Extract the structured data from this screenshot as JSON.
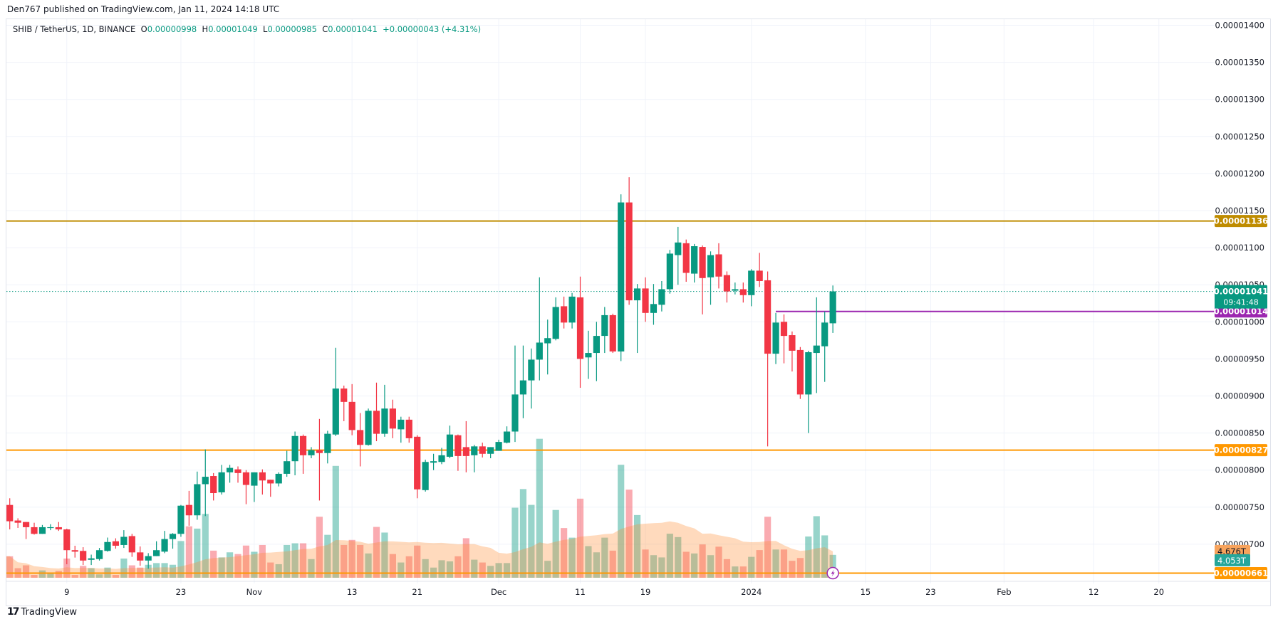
{
  "header": {
    "published": "Den767 published on TradingView.com, Jan 11, 2024 14:18 UTC"
  },
  "legend": {
    "symbol": "SHIB / TetherUS, 1D, BINANCE",
    "open_label": "O",
    "open": "0.00000998",
    "high_label": "H",
    "high": "0.00001049",
    "low_label": "L",
    "low": "0.00000985",
    "close_label": "C",
    "close": "0.00001041",
    "change": "+0.00000043 (+4.31%)"
  },
  "footer": {
    "brand": "TradingView",
    "logo_icon": "tradingview-logo-icon"
  },
  "colors": {
    "up": "#089981",
    "down": "#f23645",
    "resistance": "#bf8c00",
    "support": "#ff9800",
    "purple": "#9c27b0",
    "volume_ma": "#ff9800"
  },
  "chart_data": {
    "type": "candlestick",
    "symbol": "SHIB / TetherUS",
    "interval": "1D",
    "ylim": [
      6.61e-06,
      1.4e-05
    ],
    "y_ticks": [
      "0.00001400",
      "0.00001350",
      "0.00001300",
      "0.00001250",
      "0.00001200",
      "0.00001150",
      "0.00001100",
      "0.00001050",
      "0.00001000",
      "0.00000950",
      "0.00000900",
      "0.00000850",
      "0.00000800",
      "0.00000750",
      "0.00000700"
    ],
    "x_ticks": [
      {
        "label": "9",
        "date": "2023-10-09"
      },
      {
        "label": "23",
        "date": "2023-10-23"
      },
      {
        "label": "Nov",
        "date": "2023-11-01"
      },
      {
        "label": "13",
        "date": "2023-11-13"
      },
      {
        "label": "21",
        "date": "2023-11-21"
      },
      {
        "label": "Dec",
        "date": "2023-12-01"
      },
      {
        "label": "11",
        "date": "2023-12-11"
      },
      {
        "label": "19",
        "date": "2023-12-19"
      },
      {
        "label": "2024",
        "date": "2024-01-01"
      },
      {
        "label": "15",
        "date": "2024-01-15"
      },
      {
        "label": "23",
        "date": "2024-01-23"
      },
      {
        "label": "Feb",
        "date": "2024-02-01"
      },
      {
        "label": "12",
        "date": "2024-02-12"
      },
      {
        "label": "20",
        "date": "2024-02-20"
      }
    ],
    "grid": true,
    "volume_unit": "T",
    "columns": [
      "date",
      "open",
      "high",
      "low",
      "close",
      "volume"
    ],
    "candles": [
      [
        "2023-10-02",
        7.53e-06,
        7.62e-06,
        7.2e-06,
        7.31e-06,
        3.8
      ],
      [
        "2023-10-03",
        7.32e-06,
        7.35e-06,
        7.22e-06,
        7.29e-06,
        1.7
      ],
      [
        "2023-10-04",
        7.3e-06,
        7.3e-06,
        7.07e-06,
        7.23e-06,
        2.2
      ],
      [
        "2023-10-05",
        7.23e-06,
        7.29e-06,
        7.13e-06,
        7.14e-06,
        0.5
      ],
      [
        "2023-10-06",
        7.14e-06,
        7.26e-06,
        7.14e-06,
        7.23e-06,
        1.3
      ],
      [
        "2023-10-07",
        7.23e-06,
        7.27e-06,
        7.19e-06,
        7.23e-06,
        0.8
      ],
      [
        "2023-10-08",
        7.23e-06,
        7.3e-06,
        7.18e-06,
        7.2e-06,
        1.2
      ],
      [
        "2023-10-09",
        7.2e-06,
        7.21e-06,
        6.73e-06,
        6.92e-06,
        3.4
      ],
      [
        "2023-10-10",
        6.92e-06,
        6.98e-06,
        6.82e-06,
        6.9e-06,
        0.5
      ],
      [
        "2023-10-11",
        6.91e-06,
        6.96e-06,
        6.72e-06,
        6.78e-06,
        2.1
      ],
      [
        "2023-10-12",
        6.79e-06,
        6.86e-06,
        6.72e-06,
        6.81e-06,
        1.7
      ],
      [
        "2023-10-13",
        6.8e-06,
        6.95e-06,
        6.78e-06,
        6.92e-06,
        0.6
      ],
      [
        "2023-10-14",
        6.91e-06,
        7.09e-06,
        6.9e-06,
        7.03e-06,
        1.8
      ],
      [
        "2023-10-15",
        7.04e-06,
        7.08e-06,
        6.94e-06,
        6.98e-06,
        0.5
      ],
      [
        "2023-10-16",
        6.99e-06,
        7.19e-06,
        6.95e-06,
        7.1e-06,
        3.4
      ],
      [
        "2023-10-17",
        7.11e-06,
        7.14e-06,
        6.83e-06,
        6.89e-06,
        2.2
      ],
      [
        "2023-10-18",
        6.89e-06,
        6.97e-06,
        6.71e-06,
        6.78e-06,
        1.8
      ],
      [
        "2023-10-19",
        6.78e-06,
        6.88e-06,
        6.67e-06,
        6.84e-06,
        2.3
      ],
      [
        "2023-10-20",
        6.84e-06,
        7.04e-06,
        6.84e-06,
        6.92e-06,
        2.6
      ],
      [
        "2023-10-21",
        6.9e-06,
        7.18e-06,
        6.88e-06,
        7.07e-06,
        2.6
      ],
      [
        "2023-10-22",
        7.07e-06,
        7.15e-06,
        6.94e-06,
        7.14e-06,
        2.3
      ],
      [
        "2023-10-23",
        7.14e-06,
        7.53e-06,
        7.1e-06,
        7.52e-06,
        6.5
      ],
      [
        "2023-10-24",
        7.53e-06,
        7.72e-06,
        7.25e-06,
        7.39e-06,
        9.1
      ],
      [
        "2023-10-25",
        7.39e-06,
        7.98e-06,
        7.33e-06,
        7.81e-06,
        8.7
      ],
      [
        "2023-10-26",
        7.81e-06,
        8.28e-06,
        7.38e-06,
        7.91e-06,
        11.3
      ],
      [
        "2023-10-27",
        7.92e-06,
        7.96e-06,
        7.59e-06,
        7.69e-06,
        4.8
      ],
      [
        "2023-10-28",
        7.7e-06,
        8.07e-06,
        7.67e-06,
        7.97e-06,
        3.6
      ],
      [
        "2023-10-29",
        7.97e-06,
        8.07e-06,
        7.83e-06,
        8.03e-06,
        4.5
      ],
      [
        "2023-10-30",
        8.01e-06,
        8.05e-06,
        7.83e-06,
        7.96e-06,
        4.2
      ],
      [
        "2023-10-31",
        7.97e-06,
        8e-06,
        7.54e-06,
        7.8e-06,
        5.7
      ],
      [
        "2023-11-01",
        7.79e-06,
        7.97e-06,
        7.57e-06,
        7.97e-06,
        4.6
      ],
      [
        "2023-11-02",
        7.97e-06,
        8.01e-06,
        7.67e-06,
        7.86e-06,
        5.8
      ],
      [
        "2023-11-03",
        7.87e-06,
        7.87e-06,
        7.64e-06,
        7.82e-06,
        2.7
      ],
      [
        "2023-11-04",
        7.82e-06,
        7.97e-06,
        7.78e-06,
        7.95e-06,
        2.4
      ],
      [
        "2023-11-05",
        7.95e-06,
        8.26e-06,
        7.91e-06,
        8.12e-06,
        5.8
      ],
      [
        "2023-11-06",
        8.12e-06,
        8.52e-06,
        7.93e-06,
        8.46e-06,
        6.1
      ],
      [
        "2023-11-07",
        8.46e-06,
        8.48e-06,
        7.95e-06,
        8.2e-06,
        6.1
      ],
      [
        "2023-11-08",
        8.2e-06,
        8.31e-06,
        8.16e-06,
        8.27e-06,
        3.3
      ],
      [
        "2023-11-09",
        8.27e-06,
        8.69e-06,
        7.59e-06,
        8.23e-06,
        10.8
      ],
      [
        "2023-11-10",
        8.23e-06,
        8.53e-06,
        8.09e-06,
        8.49e-06,
        7.6
      ],
      [
        "2023-11-11",
        8.48e-06,
        9.65e-06,
        8.46e-06,
        9.1e-06,
        19.8
      ],
      [
        "2023-11-12",
        9.1e-06,
        9.14e-06,
        8.66e-06,
        8.92e-06,
        5.8
      ],
      [
        "2023-11-13",
        8.92e-06,
        9.16e-06,
        8.47e-06,
        8.54e-06,
        6.7
      ],
      [
        "2023-11-14",
        8.54e-06,
        8.77e-06,
        8.05e-06,
        8.34e-06,
        5.8
      ],
      [
        "2023-11-15",
        8.34e-06,
        8.83e-06,
        8.33e-06,
        8.8e-06,
        4.3
      ],
      [
        "2023-11-16",
        8.8e-06,
        9.18e-06,
        8.39e-06,
        8.49e-06,
        9.0
      ],
      [
        "2023-11-17",
        8.49e-06,
        9.15e-06,
        8.45e-06,
        8.83e-06,
        8.0
      ],
      [
        "2023-11-18",
        8.83e-06,
        8.95e-06,
        8.43e-06,
        8.56e-06,
        4.2
      ],
      [
        "2023-11-19",
        8.55e-06,
        8.72e-06,
        8.37e-06,
        8.68e-06,
        2.7
      ],
      [
        "2023-11-20",
        8.68e-06,
        8.72e-06,
        8.37e-06,
        8.43e-06,
        3.8
      ],
      [
        "2023-11-21",
        8.45e-06,
        8.47e-06,
        7.62e-06,
        7.74e-06,
        5.7
      ],
      [
        "2023-11-22",
        7.73e-06,
        8.14e-06,
        7.71e-06,
        8.11e-06,
        3.3
      ],
      [
        "2023-11-23",
        8.1e-06,
        8.22e-06,
        8e-06,
        8.12e-06,
        1.8
      ],
      [
        "2023-11-24",
        8.11e-06,
        8.3e-06,
        8.08e-06,
        8.2e-06,
        3.1
      ],
      [
        "2023-11-25",
        8.18e-06,
        8.6e-06,
        8.16e-06,
        8.48e-06,
        2.9
      ],
      [
        "2023-11-26",
        8.47e-06,
        8.48e-06,
        7.99e-06,
        8.19e-06,
        3.8
      ],
      [
        "2023-11-27",
        8.31e-06,
        8.66e-06,
        7.97e-06,
        8.19e-06,
        7.0
      ],
      [
        "2023-11-28",
        8.2e-06,
        8.34e-06,
        7.97e-06,
        8.32e-06,
        3.2
      ],
      [
        "2023-11-29",
        8.32e-06,
        8.37e-06,
        8.17e-06,
        8.22e-06,
        2.7
      ],
      [
        "2023-11-30",
        8.22e-06,
        8.31e-06,
        8.16e-06,
        8.31e-06,
        2.1
      ],
      [
        "2023-12-01",
        8.26e-06,
        8.41e-06,
        8.26e-06,
        8.38e-06,
        2.6
      ],
      [
        "2023-12-02",
        8.37e-06,
        8.59e-06,
        8.36e-06,
        8.52e-06,
        2.6
      ],
      [
        "2023-12-03",
        8.52e-06,
        9.68e-06,
        8.38e-06,
        9.02e-06,
        12.4
      ],
      [
        "2023-12-04",
        9.02e-06,
        9.68e-06,
        8.7e-06,
        9.21e-06,
        15.7
      ],
      [
        "2023-12-05",
        9.21e-06,
        9.64e-06,
        8.83e-06,
        9.49e-06,
        12.9
      ],
      [
        "2023-12-06",
        9.49e-06,
        1.06e-05,
        9.21e-06,
        9.72e-06,
        24.6
      ],
      [
        "2023-12-07",
        9.71e-06,
        1.003e-05,
        9.29e-06,
        9.78e-06,
        3.0
      ],
      [
        "2023-12-08",
        9.77e-06,
        1.033e-05,
        9.75e-06,
        1.02e-05,
        12.0
      ],
      [
        "2023-12-09",
        1.021e-05,
        1.034e-05,
        9.91e-06,
        9.99e-06,
        8.8
      ],
      [
        "2023-12-10",
        9.99e-06,
        1.039e-05,
        9.91e-06,
        1.034e-05,
        7.1
      ],
      [
        "2023-12-11",
        1.033e-05,
        1.061e-05,
        9.11e-06,
        9.5e-06,
        14.0
      ],
      [
        "2023-12-12",
        9.52e-06,
        9.88e-06,
        9.23e-06,
        9.58e-06,
        5.6
      ],
      [
        "2023-12-13",
        9.58e-06,
        1e-05,
        9.2e-06,
        9.81e-06,
        4.5
      ],
      [
        "2023-12-14",
        9.81e-06,
        1.02e-05,
        9.58e-06,
        1.009e-05,
        7.1
      ],
      [
        "2023-12-15",
        1.009e-05,
        1.011e-05,
        9.58e-06,
        9.6e-06,
        4.8
      ],
      [
        "2023-12-16",
        9.6e-06,
        1.172e-05,
        9.47e-06,
        1.161e-05,
        20.0
      ],
      [
        "2023-12-17",
        1.161e-05,
        1.195e-05,
        1.023e-05,
        1.029e-05,
        15.6
      ],
      [
        "2023-12-18",
        1.029e-05,
        1.051e-05,
        9.58e-06,
        1.045e-05,
        11.1
      ],
      [
        "2023-12-19",
        1.045e-05,
        1.06e-05,
        1e-05,
        1.012e-05,
        5.0
      ],
      [
        "2023-12-20",
        1.012e-05,
        1.051e-05,
        9.96e-06,
        1.024e-05,
        4.0
      ],
      [
        "2023-12-21",
        1.023e-05,
        1.055e-05,
        1.014e-05,
        1.044e-05,
        3.6
      ],
      [
        "2023-12-22",
        1.044e-05,
        1.097e-05,
        1.038e-05,
        1.092e-05,
        7.8
      ],
      [
        "2023-12-23",
        1.09e-05,
        1.128e-05,
        1.05e-05,
        1.107e-05,
        7.2
      ],
      [
        "2023-12-24",
        1.106e-05,
        1.111e-05,
        1.054e-05,
        1.066e-05,
        4.6
      ],
      [
        "2023-12-25",
        1.065e-05,
        1.105e-05,
        1.053e-05,
        1.102e-05,
        4.3
      ],
      [
        "2023-12-26",
        1.101e-05,
        1.103e-05,
        1.01e-05,
        1.059e-05,
        5.9
      ],
      [
        "2023-12-27",
        1.06e-05,
        1.095e-05,
        1.023e-05,
        1.09e-05,
        4.0
      ],
      [
        "2023-12-28",
        1.091e-05,
        1.106e-05,
        1.045e-05,
        1.061e-05,
        5.5
      ],
      [
        "2023-12-29",
        1.063e-05,
        1.068e-05,
        1.026e-05,
        1.041e-05,
        3.3
      ],
      [
        "2023-12-30",
        1.042e-05,
        1.053e-05,
        1.037e-05,
        1.044e-05,
        2.0
      ],
      [
        "2023-12-31",
        1.044e-05,
        1.053e-05,
        1.026e-05,
        1.036e-05,
        2.0
      ],
      [
        "2024-01-01",
        1.036e-05,
        1.071e-05,
        1.021e-05,
        1.069e-05,
        3.7
      ],
      [
        "2024-01-02",
        1.069e-05,
        1.093e-05,
        1.047e-05,
        1.055e-05,
        4.9
      ],
      [
        "2024-01-03",
        1.056e-05,
        1.068e-05,
        8.32e-06,
        9.57e-06,
        10.8
      ],
      [
        "2024-01-04",
        9.57e-06,
        1.012e-05,
        9.43e-06,
        9.99e-06,
        5.0
      ],
      [
        "2024-01-05",
        1e-05,
        1.01e-05,
        9.44e-06,
        9.81e-06,
        5.0
      ],
      [
        "2024-01-06",
        9.82e-06,
        9.87e-06,
        9.33e-06,
        9.61e-06,
        3.0
      ],
      [
        "2024-01-07",
        9.62e-06,
        9.66e-06,
        8.96e-06,
        9.02e-06,
        3.5
      ],
      [
        "2024-01-08",
        9.02e-06,
        9.61e-06,
        8.5e-06,
        9.59e-06,
        7.3
      ],
      [
        "2024-01-09",
        9.58e-06,
        1.033e-05,
        9.04e-06,
        9.68e-06,
        10.9
      ],
      [
        "2024-01-10",
        9.67e-06,
        1.014e-05,
        9.19e-06,
        9.99e-06,
        7.5
      ],
      [
        "2024-01-11",
        9.98e-06,
        1.049e-05,
        9.85e-06,
        1.041e-05,
        4.053
      ]
    ],
    "horizontal_lines": [
      {
        "price": 1.136e-05,
        "label": "0.00001136",
        "color": "#bf8c00",
        "from_date": null
      },
      {
        "price": 1.014e-05,
        "label": "0.00001014",
        "color": "#9c27b0",
        "from_date": "2024-01-04"
      },
      {
        "price": 8.27e-06,
        "label": "0.00000827",
        "color": "#ff9800",
        "from_date": null
      },
      {
        "price": 6.61e-06,
        "label": "0.00000661",
        "color": "#ff9800",
        "from_date": null
      }
    ],
    "last_price": {
      "price": 1.041e-05,
      "label": "0.00001041",
      "countdown": "09:41:48",
      "color": "#089981"
    },
    "volume_labels": {
      "ma": "4.676T",
      "ma_value": 4.676,
      "last": "4.053T",
      "last_value": 4.053
    },
    "alert_icon": "lightning-icon"
  }
}
